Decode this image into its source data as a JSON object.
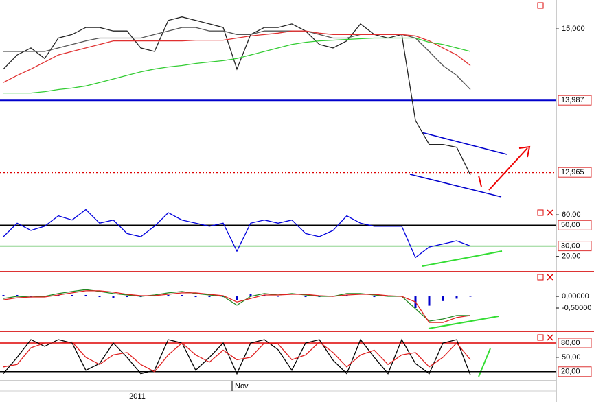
{
  "chart_data": [
    {
      "type": "line",
      "ylim": [
        12490,
        15410
      ],
      "yticks": [
        {
          "value": 15000,
          "label": "15,000"
        }
      ],
      "hlines": [
        {
          "value": 13987,
          "label": "13,987",
          "color": "#0000cc",
          "style": "solid"
        },
        {
          "value": 12965,
          "label": "12,965",
          "color": "#dd0000",
          "style": "dotted"
        }
      ],
      "series": [
        {
          "color": "#222222",
          "values": [
            14430,
            14630,
            14730,
            14580,
            14870,
            14920,
            15020,
            15020,
            14970,
            14970,
            14730,
            14680,
            15120,
            15170,
            15120,
            15070,
            15020,
            14430,
            14920,
            15020,
            15020,
            15070,
            14970,
            14780,
            14730,
            14830,
            15070,
            14920,
            14870,
            14920,
            13700,
            13360,
            13360,
            13320,
            12930
          ]
        },
        {
          "color": "#555555",
          "values": [
            14680,
            14680,
            14680,
            14680,
            14730,
            14780,
            14830,
            14870,
            14870,
            14870,
            14870,
            14920,
            14970,
            15020,
            15020,
            14970,
            14970,
            14920,
            14920,
            14970,
            14970,
            14970,
            14970,
            14920,
            14870,
            14870,
            14920,
            14920,
            14920,
            14920,
            14870,
            14680,
            14480,
            14340,
            14140
          ]
        },
        {
          "color": "#e03030",
          "values": [
            14240,
            14340,
            14430,
            14530,
            14630,
            14680,
            14730,
            14780,
            14830,
            14830,
            14830,
            14830,
            14830,
            14830,
            14840,
            14840,
            14840,
            14870,
            14900,
            14920,
            14940,
            14970,
            14970,
            14940,
            14920,
            14920,
            14920,
            14920,
            14920,
            14920,
            14900,
            14830,
            14730,
            14630,
            14480
          ]
        },
        {
          "color": "#33cc33",
          "values": [
            14090,
            14090,
            14090,
            14110,
            14140,
            14160,
            14190,
            14240,
            14290,
            14340,
            14390,
            14430,
            14460,
            14480,
            14510,
            14530,
            14550,
            14580,
            14630,
            14680,
            14730,
            14780,
            14810,
            14830,
            14840,
            14850,
            14860,
            14870,
            14870,
            14870,
            14870,
            14810,
            14780,
            14730,
            14680
          ]
        }
      ]
    },
    {
      "type": "line",
      "ylim": [
        6,
        68
      ],
      "yticks": [
        {
          "value": 60,
          "label": "60,00"
        },
        {
          "value": 20,
          "label": "20,00"
        }
      ],
      "hlines": [
        {
          "value": 50,
          "label": "50,00",
          "color": "#000000",
          "style": "solid"
        },
        {
          "value": 30,
          "label": "30,00",
          "color": "#22aa22",
          "style": "solid"
        }
      ],
      "series": [
        {
          "color": "#0000dd",
          "values": [
            39,
            52,
            45,
            49,
            59,
            55,
            65,
            52,
            55,
            42,
            39,
            49,
            62,
            55,
            52,
            49,
            52,
            25,
            52,
            55,
            52,
            55,
            42,
            39,
            45,
            59,
            52,
            49,
            49,
            49,
            19,
            29,
            32,
            35,
            30
          ]
        }
      ]
    },
    {
      "type": "line",
      "ylim": [
        -1.5,
        1.06
      ],
      "yticks": [
        {
          "value": 0,
          "label": "0,00000"
        },
        {
          "value": -0.5,
          "label": "-0,50000"
        }
      ],
      "hlines": [],
      "series": [
        {
          "type": "bar",
          "color": "#0000cc",
          "values": [
            0.06,
            0.06,
            0,
            0.03,
            0.06,
            0.06,
            0.06,
            -0.03,
            -0.06,
            -0.03,
            -0.03,
            0.03,
            0.06,
            0.06,
            -0.03,
            -0.03,
            -0.03,
            -0.15,
            0.09,
            0.06,
            0,
            0.03,
            -0.03,
            -0.03,
            0,
            0.06,
            0.03,
            -0.03,
            0.03,
            0,
            -0.5,
            -0.4,
            -0.2,
            -0.1,
            0
          ]
        },
        {
          "color": "#228822",
          "values": [
            -0.09,
            0,
            -0.03,
            0,
            0.12,
            0.21,
            0.29,
            0.21,
            0.12,
            0.06,
            0,
            0.06,
            0.15,
            0.21,
            0.12,
            0.06,
            0,
            -0.38,
            0,
            0.12,
            0.06,
            0.12,
            0.06,
            0,
            0,
            0.12,
            0.12,
            0.06,
            0,
            0,
            -0.53,
            -1.06,
            -0.97,
            -0.82,
            -0.82
          ]
        },
        {
          "color": "#e02020",
          "values": [
            -0.15,
            -0.06,
            -0.03,
            -0.03,
            0.06,
            0.15,
            0.24,
            0.24,
            0.18,
            0.09,
            0.03,
            0.03,
            0.09,
            0.15,
            0.15,
            0.09,
            0.03,
            -0.24,
            -0.09,
            0.06,
            0.06,
            0.09,
            0.09,
            0.03,
            0,
            0.06,
            0.09,
            0.09,
            0.03,
            0,
            -0.24,
            -1.12,
            -1.12,
            -0.91,
            -0.82
          ]
        }
      ]
    },
    {
      "type": "line",
      "ylim": [
        1,
        103
      ],
      "yticks": [
        {
          "value": 50,
          "label": "50,00"
        }
      ],
      "hlines": [
        {
          "value": 80,
          "label": "80,00",
          "color": "#dd0000",
          "style": "solid"
        },
        {
          "value": 20,
          "label": "20,00",
          "color": "#000000",
          "style": "solid"
        }
      ],
      "series": [
        {
          "color": "#000000",
          "values": [
            16,
            50,
            87,
            73,
            87,
            80,
            23,
            37,
            80,
            50,
            16,
            23,
            87,
            80,
            23,
            50,
            80,
            16,
            80,
            87,
            66,
            23,
            80,
            87,
            44,
            16,
            87,
            50,
            16,
            87,
            37,
            16,
            80,
            87,
            13
          ]
        },
        {
          "color": "#e02020",
          "values": [
            30,
            35,
            70,
            80,
            80,
            82,
            50,
            35,
            55,
            60,
            35,
            20,
            55,
            80,
            55,
            40,
            65,
            45,
            50,
            80,
            78,
            45,
            55,
            82,
            60,
            30,
            55,
            65,
            35,
            55,
            60,
            30,
            50,
            80,
            45
          ]
        }
      ]
    }
  ],
  "x_axis": {
    "ticks": [
      {
        "value": 16.65,
        "label": "Nov"
      }
    ],
    "year_label": "2011"
  }
}
